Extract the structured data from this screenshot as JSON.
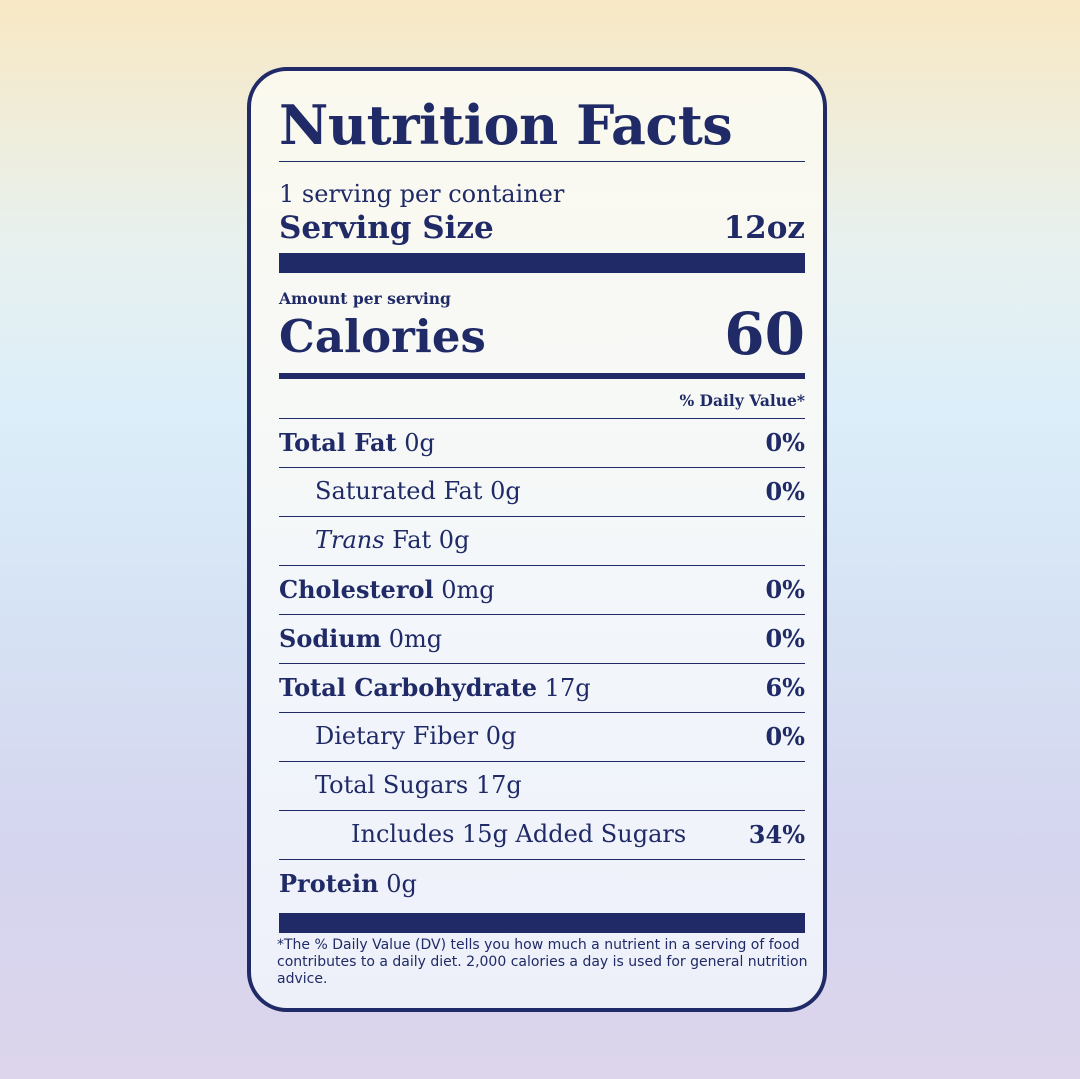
{
  "label": {
    "title": "Nutrition Facts",
    "servings_per_container": "1 serving per container",
    "serving_size_label": "Serving Size",
    "serving_size_value": "12oz",
    "amount_per_serving": "Amount per serving",
    "calories_label": "Calories",
    "calories_value": "60",
    "daily_value_header": "% Daily Value*",
    "rows": [
      {
        "name": "Total Fat",
        "amount": " 0g",
        "dv": "0%",
        "bold": true,
        "italic_prefix": "",
        "level": 0
      },
      {
        "name": "Saturated Fat",
        "amount": " 0g",
        "dv": "0%",
        "bold": false,
        "italic_prefix": "",
        "level": 1
      },
      {
        "name": " Fat",
        "amount": " 0g",
        "dv": "",
        "bold": false,
        "italic_prefix": "Trans",
        "level": 1
      },
      {
        "name": "Cholesterol",
        "amount": " 0mg",
        "dv": "0%",
        "bold": true,
        "italic_prefix": "",
        "level": 0
      },
      {
        "name": "Sodium",
        "amount": " 0mg",
        "dv": "0%",
        "bold": true,
        "italic_prefix": "",
        "level": 0
      },
      {
        "name": "Total Carbohydrate",
        "amount": " 17g",
        "dv": "6%",
        "bold": true,
        "italic_prefix": "",
        "level": 0
      },
      {
        "name": "Dietary Fiber",
        "amount": " 0g",
        "dv": "0%",
        "bold": false,
        "italic_prefix": "",
        "level": 1
      },
      {
        "name": "Total Sugars",
        "amount": " 17g",
        "dv": "",
        "bold": false,
        "italic_prefix": "",
        "level": 1
      },
      {
        "name": "Includes 15g Added Sugars",
        "amount": "",
        "dv": "34%",
        "bold": false,
        "italic_prefix": "",
        "level": 2
      },
      {
        "name": "Protein",
        "amount": " 0g",
        "dv": "",
        "bold": true,
        "italic_prefix": "",
        "level": 0
      }
    ],
    "footnote": "*The % Daily Value (DV) tells you how much a nutrient in a serving of food contributes to a daily diet. 2,000 calories a day is used for general nutrition advice."
  },
  "colors": {
    "ink": "#1f2a66",
    "label_background": "#f7f9f7"
  }
}
